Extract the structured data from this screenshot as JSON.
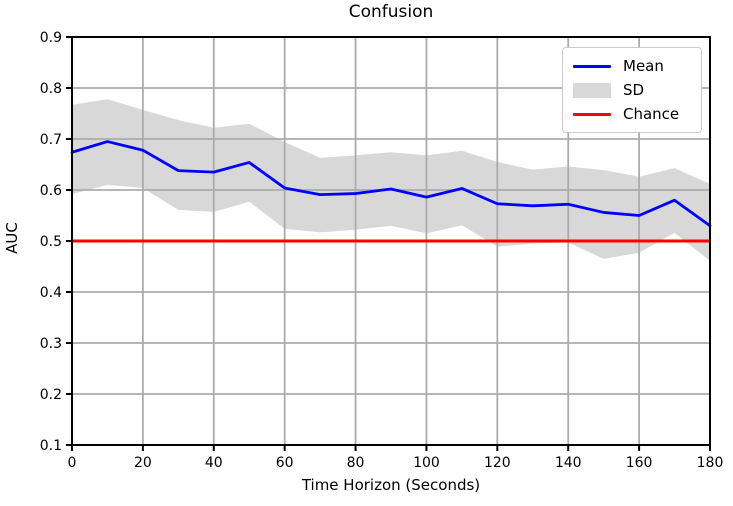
{
  "chart_data": {
    "type": "line",
    "title": "Confusion",
    "xlabel": "Time Horizon (Seconds)",
    "ylabel": "AUC",
    "xlim": [
      0,
      180
    ],
    "ylim": [
      0.1,
      0.9
    ],
    "grid": true,
    "xticks": [
      0,
      20,
      40,
      60,
      80,
      100,
      120,
      140,
      160,
      180
    ],
    "xticklabels": [
      "0",
      "20",
      "40",
      "60",
      "80",
      "100",
      "120",
      "140",
      "160",
      "180"
    ],
    "yticks": [
      0.1,
      0.2,
      0.3,
      0.4,
      0.5,
      0.6,
      0.7,
      0.8,
      0.9
    ],
    "yticklabels": [
      "0.1",
      "0.2",
      "0.3",
      "0.4",
      "0.5",
      "0.6",
      "0.7",
      "0.8",
      "0.9"
    ],
    "x": [
      0,
      10,
      20,
      30,
      40,
      50,
      60,
      70,
      80,
      90,
      100,
      110,
      120,
      130,
      140,
      150,
      160,
      170,
      180
    ],
    "series": [
      {
        "name": "Mean",
        "type": "line",
        "color": "#0000ff",
        "values": [
          0.674,
          0.695,
          0.678,
          0.638,
          0.635,
          0.654,
          0.604,
          0.591,
          0.593,
          0.602,
          0.586,
          0.603,
          0.573,
          0.569,
          0.572,
          0.556,
          0.55,
          0.58,
          0.53
        ]
      },
      {
        "name": "SD",
        "type": "band",
        "color": "#d8d8d8",
        "upper": [
          0.767,
          0.778,
          0.757,
          0.737,
          0.722,
          0.73,
          0.694,
          0.663,
          0.668,
          0.674,
          0.668,
          0.677,
          0.655,
          0.64,
          0.646,
          0.639,
          0.626,
          0.643,
          0.612
        ],
        "lower": [
          0.592,
          0.61,
          0.604,
          0.561,
          0.557,
          0.577,
          0.524,
          0.517,
          0.522,
          0.53,
          0.515,
          0.531,
          0.489,
          0.495,
          0.497,
          0.465,
          0.477,
          0.516,
          0.461
        ]
      },
      {
        "name": "Chance",
        "type": "hline",
        "color": "#ff0000",
        "value": 0.5
      }
    ],
    "legend": {
      "position": "upper right",
      "entries": [
        {
          "label": "Mean",
          "type": "line",
          "color": "#0000ff"
        },
        {
          "label": "SD",
          "type": "patch",
          "color": "#d8d8d8"
        },
        {
          "label": "Chance",
          "type": "line",
          "color": "#ff0000"
        }
      ]
    },
    "colors": {
      "grid": "#ababab",
      "spine": "#000000",
      "background": "#ffffff",
      "tick_label": "#000000"
    }
  }
}
